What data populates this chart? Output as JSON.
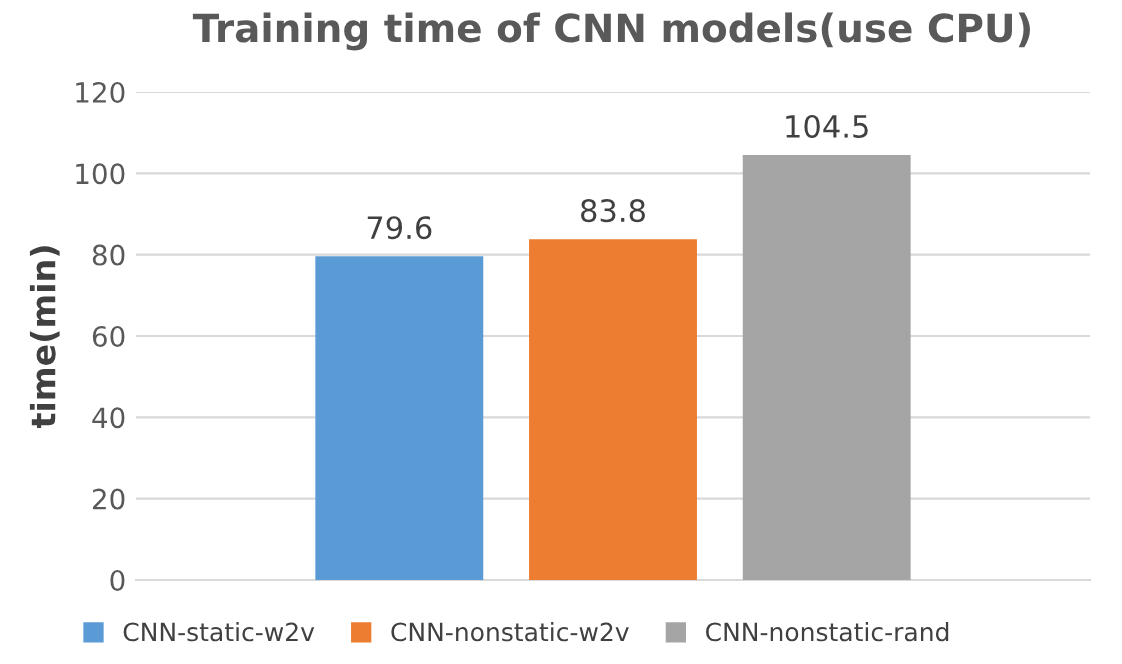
{
  "chart_data": {
    "type": "bar",
    "title": "Training time of CNN models(use CPU)",
    "ylabel": "time(min)",
    "categories": [
      null
    ],
    "series": [
      {
        "name": "CNN-static-w2v",
        "color": "#5b9bd5",
        "values": [
          79.6
        ]
      },
      {
        "name": "CNN-nonstatic-w2v",
        "color": "#ed7d31",
        "values": [
          83.8
        ]
      },
      {
        "name": "CNN-nonstatic-rand",
        "color": "#a5a5a5",
        "values": [
          104.5
        ]
      }
    ],
    "ylim": [
      0,
      120
    ],
    "yticks": [
      0,
      20,
      40,
      60,
      80,
      100,
      120
    ],
    "grid": "y",
    "legend": "bottom",
    "data_labels": true
  }
}
